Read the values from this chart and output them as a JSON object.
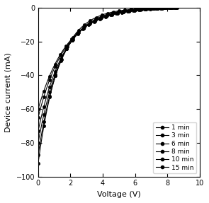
{
  "title": "",
  "xlabel": "Voltage (V)",
  "ylabel": "Device current (mA)",
  "xlim": [
    0,
    10
  ],
  "ylim": [
    -100,
    0
  ],
  "xticks": [
    0,
    2,
    4,
    6,
    8,
    10
  ],
  "yticks": [
    0,
    -20,
    -40,
    -60,
    -80,
    -100
  ],
  "series": [
    {
      "label": "1 min",
      "marker": "o",
      "Isc": -60.0,
      "Voc": 8.3,
      "n": 1.8
    },
    {
      "label": "3 min",
      "marker": "^",
      "Isc": -65.0,
      "Voc": 8.4,
      "n": 1.7
    },
    {
      "label": "6 min",
      "marker": "v",
      "Isc": -73.0,
      "Voc": 8.45,
      "n": 1.6
    },
    {
      "label": "8 min",
      "marker": "s",
      "Isc": -80.0,
      "Voc": 8.5,
      "n": 1.5
    },
    {
      "label": "10 min",
      "marker": "o",
      "Isc": -87.0,
      "Voc": 8.55,
      "n": 1.4
    },
    {
      "label": "15 min",
      "marker": "o",
      "Isc": -92.0,
      "Voc": 8.6,
      "n": 1.3
    }
  ],
  "line_color": "black",
  "marker_color": "black",
  "marker_size": 3.0,
  "linewidth": 0.8,
  "figsize": [
    2.95,
    2.87
  ],
  "dpi": 100,
  "background_color": "#ffffff",
  "legend_loc": "lower right",
  "legend_fontsize": 6.5,
  "axis_fontsize": 8,
  "tick_fontsize": 7,
  "n_markers": 25
}
